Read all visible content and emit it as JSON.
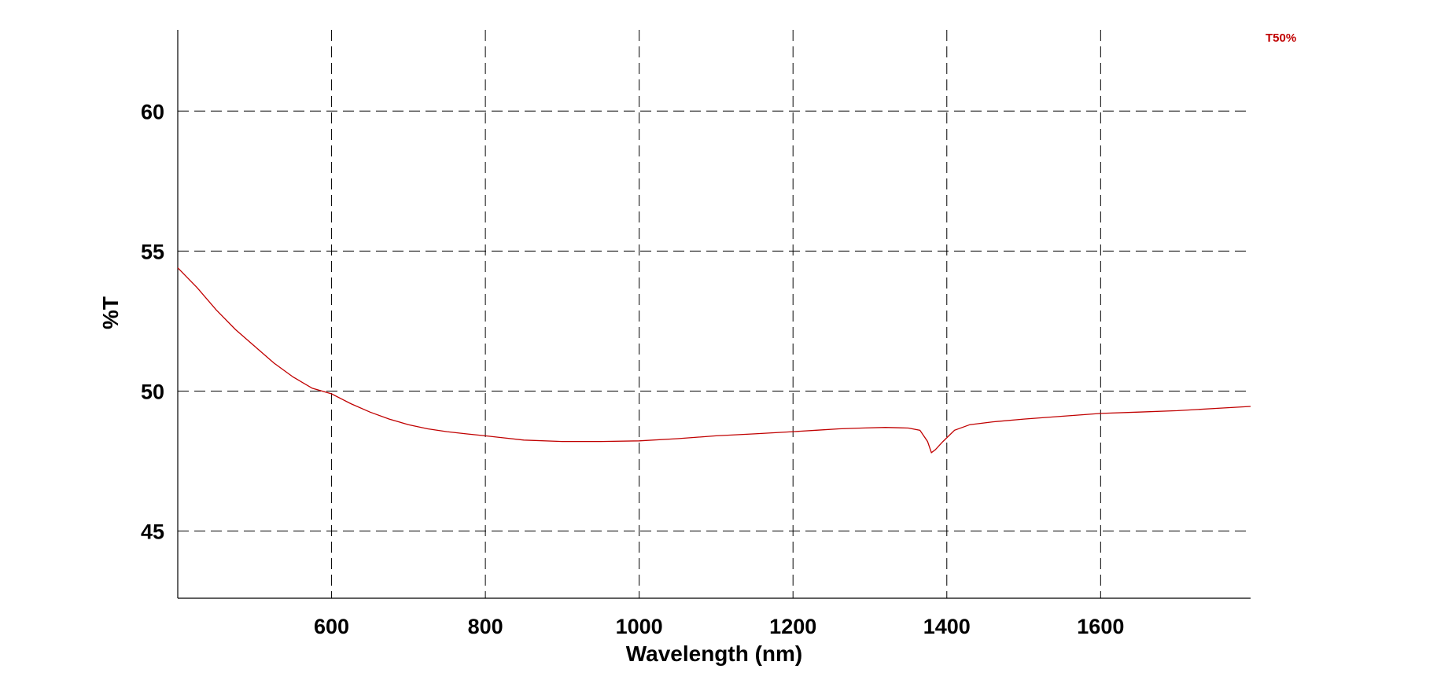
{
  "chart_data": {
    "type": "line",
    "title": "",
    "xlabel": "Wavelength (nm)",
    "ylabel": "%T",
    "xlim": [
      400,
      1795
    ],
    "ylim": [
      42.6,
      62.9
    ],
    "xticks": [
      600,
      800,
      1000,
      1200,
      1400,
      1600
    ],
    "yticks": [
      45,
      50,
      55,
      60
    ],
    "xtick_labels": [
      "600",
      "800",
      "1000",
      "1200",
      "1400",
      "1600"
    ],
    "ytick_labels": [
      "45",
      "50",
      "55",
      "60"
    ],
    "grid": true,
    "legend_placement": "top-right",
    "series": [
      {
        "name": "T50%",
        "color": "#c00000",
        "x": [
          400,
          425,
          450,
          475,
          500,
          525,
          550,
          575,
          600,
          625,
          650,
          675,
          700,
          725,
          750,
          775,
          800,
          850,
          900,
          950,
          1000,
          1050,
          1100,
          1150,
          1200,
          1230,
          1260,
          1290,
          1320,
          1350,
          1365,
          1375,
          1380,
          1385,
          1395,
          1410,
          1430,
          1460,
          1500,
          1550,
          1600,
          1650,
          1700,
          1750,
          1795
        ],
        "y": [
          54.4,
          53.7,
          52.9,
          52.2,
          51.6,
          51.0,
          50.5,
          50.1,
          49.9,
          49.55,
          49.25,
          49.0,
          48.8,
          48.65,
          48.55,
          48.47,
          48.4,
          48.25,
          48.2,
          48.2,
          48.22,
          48.3,
          48.4,
          48.47,
          48.55,
          48.6,
          48.65,
          48.68,
          48.7,
          48.68,
          48.6,
          48.2,
          47.8,
          47.9,
          48.2,
          48.6,
          48.8,
          48.9,
          49.0,
          49.1,
          49.2,
          49.25,
          49.3,
          49.38,
          49.45
        ]
      }
    ]
  }
}
